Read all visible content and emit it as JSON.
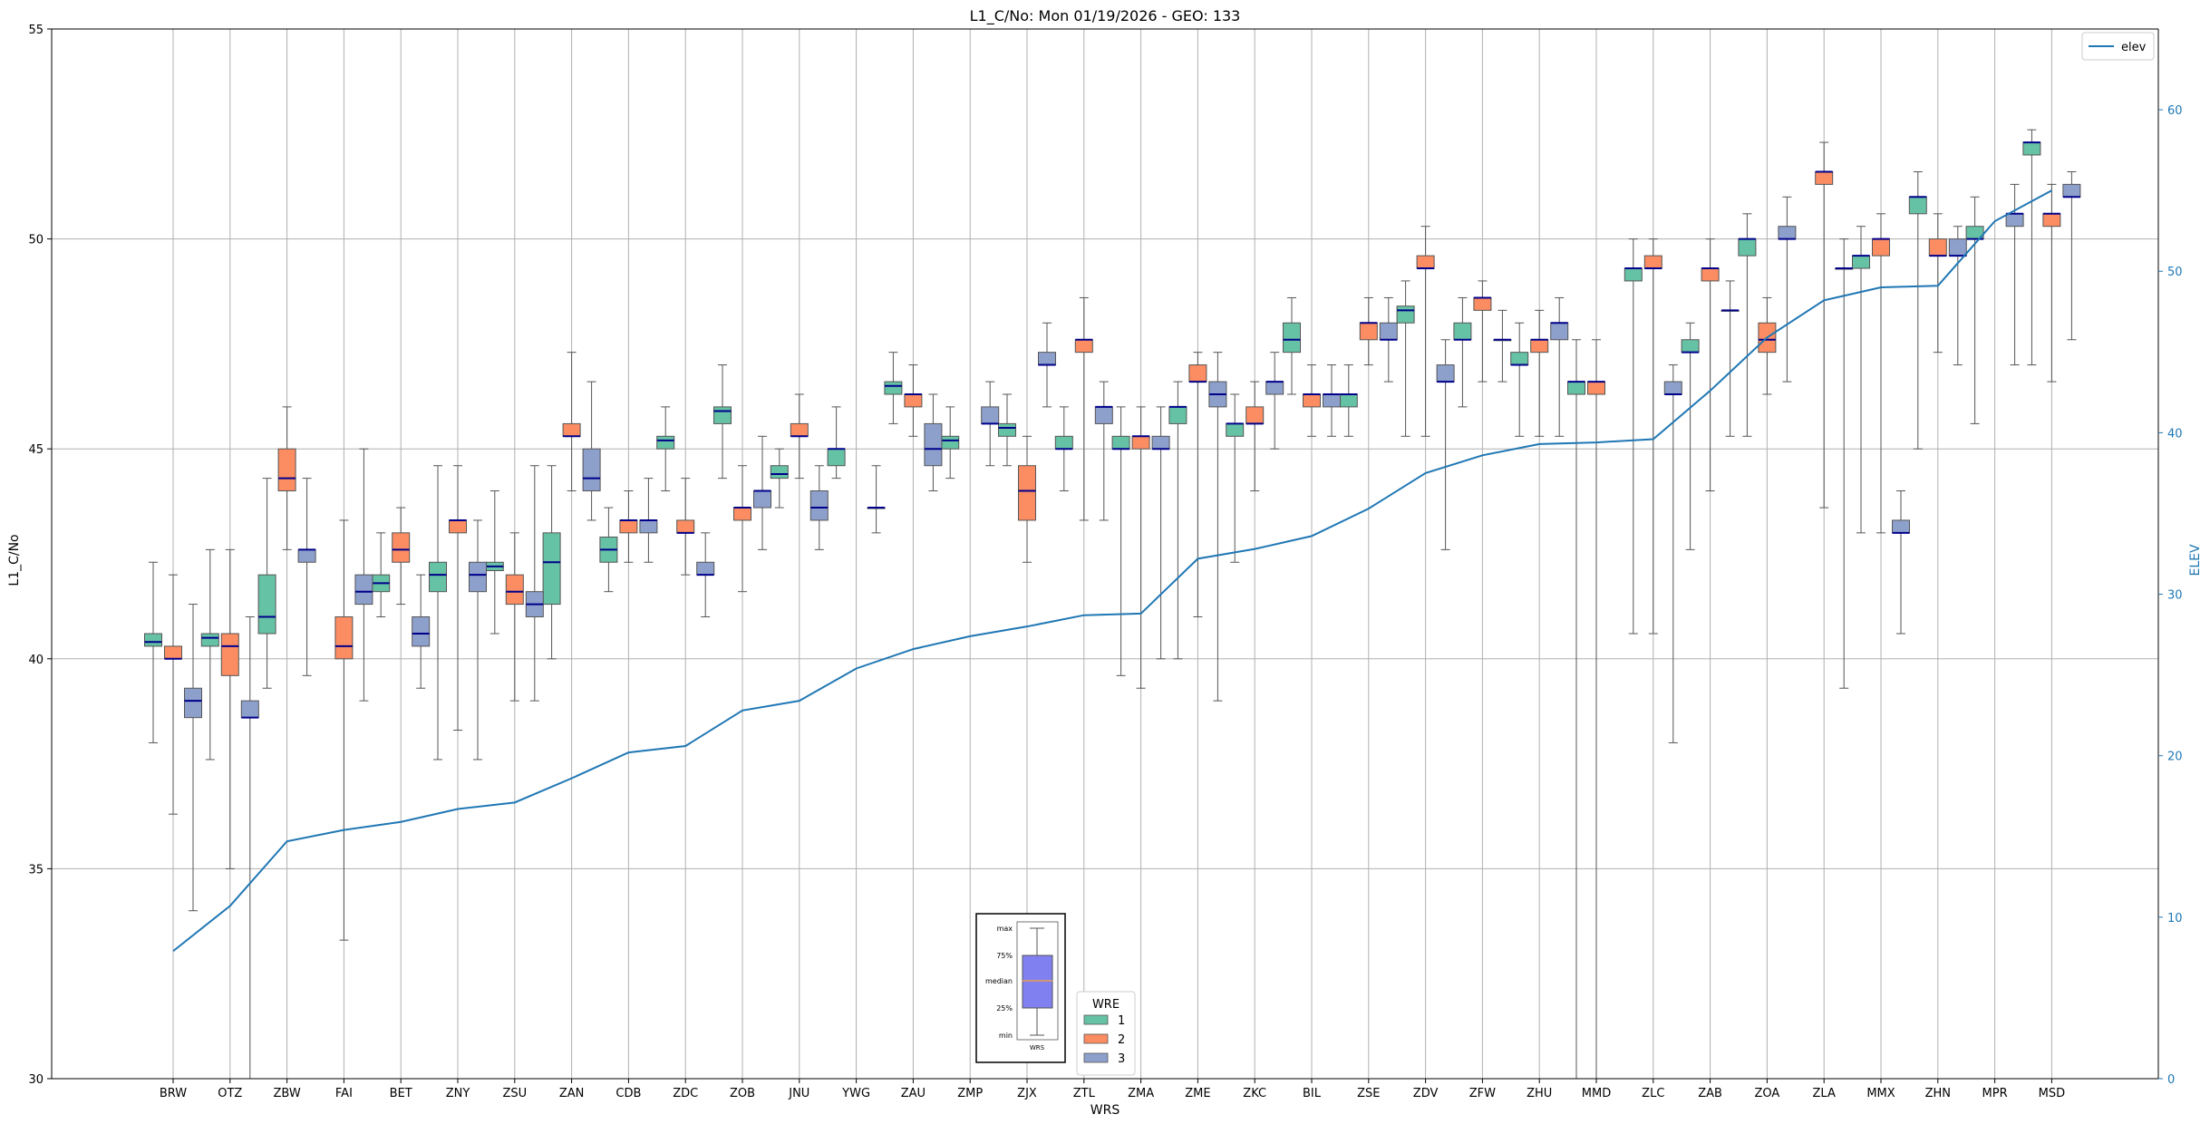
{
  "chart_data": {
    "type": "boxplot",
    "title": "L1_C/No: Mon 01/19/2026 - GEO: 133",
    "xlabel": "WRS",
    "ylabel": "L1_C/No",
    "y2label": "ELEV",
    "ylim": [
      30,
      55
    ],
    "y2lim": [
      0,
      65
    ],
    "yticks": [
      30,
      35,
      40,
      45,
      50,
      55
    ],
    "y2ticks": [
      0,
      10,
      20,
      30,
      40,
      50,
      60
    ],
    "grid": true,
    "categories": [
      "BRW",
      "OTZ",
      "ZBW",
      "FAI",
      "BET",
      "ZNY",
      "ZSU",
      "ZAN",
      "CDB",
      "ZDC",
      "ZOB",
      "JNU",
      "YWG",
      "ZAU",
      "ZMP",
      "ZJX",
      "ZTL",
      "ZMA",
      "ZME",
      "ZKC",
      "BIL",
      "ZSE",
      "ZDV",
      "ZFW",
      "ZHU",
      "MMD",
      "ZLC",
      "ZAB",
      "ZOA",
      "ZLA",
      "MMX",
      "ZHN",
      "MPR",
      "MSD"
    ],
    "wre_legend": {
      "title": "WRE",
      "entries": [
        "1",
        "2",
        "3"
      ],
      "colors": [
        "#66c2a5",
        "#fc8d62",
        "#8da0cb"
      ]
    },
    "elev_legend": {
      "label": "elev",
      "color": "#1f77b4"
    },
    "inset_labels": [
      "max",
      "75%",
      "median",
      "25%",
      "min"
    ],
    "inset_xlabel": "WRS",
    "elev": [
      7.9,
      10.7,
      14.7,
      15.4,
      15.9,
      16.7,
      17.1,
      18.6,
      20.2,
      20.6,
      22.8,
      23.4,
      25.4,
      26.6,
      27.4,
      28.0,
      28.7,
      28.8,
      32.2,
      32.8,
      33.6,
      35.3,
      37.5,
      38.6,
      39.3,
      39.4,
      39.6,
      42.6,
      45.9,
      48.2,
      49.0,
      49.1,
      53.1,
      55.0
    ],
    "series": [
      {
        "name": "1",
        "boxes": [
          [
            38.0,
            40.3,
            40.4,
            40.6,
            42.3
          ],
          [
            37.6,
            40.3,
            40.5,
            40.6,
            42.6
          ],
          [
            39.3,
            40.6,
            41.0,
            42.0,
            44.3
          ],
          null,
          [
            41.0,
            41.6,
            41.8,
            42.0,
            43.0
          ],
          [
            37.6,
            41.6,
            42.0,
            42.3,
            44.6
          ],
          [
            40.6,
            42.1,
            42.2,
            42.3,
            44.0
          ],
          [
            40.0,
            41.3,
            42.3,
            43.0,
            44.6
          ],
          [
            41.6,
            42.3,
            42.6,
            42.9,
            43.6
          ],
          [
            44.0,
            45.0,
            45.2,
            45.3,
            46.0
          ],
          [
            44.3,
            45.6,
            45.9,
            46.0,
            47.0
          ],
          [
            43.6,
            44.3,
            44.4,
            44.6,
            45.0
          ],
          [
            44.3,
            44.6,
            45.0,
            45.0,
            46.0
          ],
          [
            45.6,
            46.3,
            46.5,
            46.6,
            47.3
          ],
          [
            44.3,
            45.0,
            45.2,
            45.3,
            46.0
          ],
          [
            44.6,
            45.3,
            45.5,
            45.6,
            46.3
          ],
          [
            44.0,
            45.0,
            45.0,
            45.3,
            46.0
          ],
          [
            39.6,
            45.0,
            45.0,
            45.3,
            46.0
          ],
          [
            40.0,
            45.6,
            46.0,
            46.0,
            46.6
          ],
          [
            42.3,
            45.3,
            45.6,
            45.6,
            46.3
          ],
          [
            46.3,
            47.3,
            47.6,
            48.0,
            48.6
          ],
          [
            45.3,
            46.0,
            46.3,
            46.3,
            47.0
          ],
          [
            45.3,
            48.0,
            48.3,
            48.4,
            49.0
          ],
          [
            46.0,
            47.6,
            47.6,
            48.0,
            48.6
          ],
          [
            45.3,
            47.0,
            47.0,
            47.3,
            48.0
          ],
          [
            30.0,
            46.3,
            46.6,
            46.6,
            47.6
          ],
          [
            40.6,
            49.0,
            49.3,
            49.3,
            50.0
          ],
          [
            42.6,
            47.3,
            47.3,
            47.6,
            48.0
          ],
          [
            45.3,
            49.6,
            50.0,
            50.0,
            50.6
          ],
          null,
          [
            43.0,
            49.3,
            49.6,
            49.6,
            50.3
          ],
          [
            45.0,
            50.6,
            51.0,
            51.0,
            51.6
          ],
          [
            45.6,
            50.0,
            50.0,
            50.3,
            51.0
          ],
          [
            47.0,
            52.0,
            52.3,
            52.3,
            52.6
          ]
        ]
      },
      {
        "name": "2",
        "boxes": [
          [
            36.3,
            40.0,
            40.0,
            40.3,
            42.0
          ],
          [
            35.0,
            39.6,
            40.3,
            40.6,
            42.6
          ],
          [
            42.6,
            44.0,
            44.3,
            45.0,
            46.0
          ],
          [
            33.3,
            40.0,
            40.3,
            41.0,
            43.3
          ],
          [
            41.3,
            42.3,
            42.6,
            43.0,
            43.6
          ],
          [
            38.3,
            43.0,
            43.3,
            43.3,
            44.6
          ],
          [
            39.0,
            41.3,
            41.6,
            42.0,
            43.0
          ],
          [
            44.0,
            45.3,
            45.3,
            45.6,
            47.3
          ],
          [
            42.3,
            43.0,
            43.3,
            43.3,
            44.0
          ],
          [
            42.0,
            43.0,
            43.0,
            43.3,
            44.3
          ],
          [
            41.6,
            43.3,
            43.6,
            43.6,
            44.6
          ],
          [
            44.3,
            45.3,
            45.3,
            45.6,
            46.3
          ],
          null,
          [
            45.3,
            46.0,
            46.3,
            46.3,
            47.0
          ],
          null,
          [
            42.3,
            43.3,
            44.0,
            44.6,
            45.3
          ],
          [
            43.3,
            47.3,
            47.6,
            47.6,
            48.6
          ],
          [
            39.3,
            45.0,
            45.3,
            45.3,
            46.0
          ],
          [
            41.0,
            46.6,
            46.6,
            47.0,
            47.3
          ],
          [
            44.0,
            45.6,
            45.6,
            46.0,
            46.6
          ],
          [
            45.3,
            46.0,
            46.3,
            46.3,
            47.0
          ],
          [
            47.0,
            47.6,
            48.0,
            48.0,
            48.6
          ],
          [
            45.3,
            49.3,
            49.3,
            49.6,
            50.3
          ],
          [
            46.6,
            48.3,
            48.6,
            48.6,
            49.0
          ],
          [
            45.3,
            47.3,
            47.6,
            47.6,
            48.3
          ],
          [
            30.0,
            46.3,
            46.6,
            46.6,
            47.6
          ],
          [
            40.6,
            49.3,
            49.3,
            49.6,
            50.0
          ],
          [
            44.0,
            49.0,
            49.3,
            49.3,
            50.0
          ],
          [
            46.3,
            47.3,
            47.6,
            48.0,
            48.6
          ],
          [
            43.6,
            51.3,
            51.6,
            51.6,
            52.3
          ],
          [
            43.0,
            49.6,
            50.0,
            50.0,
            50.6
          ],
          [
            47.3,
            49.6,
            49.6,
            50.0,
            50.6
          ],
          null,
          [
            46.6,
            50.3,
            50.6,
            50.6,
            51.3
          ]
        ]
      },
      {
        "name": "3",
        "boxes": [
          [
            34.0,
            38.6,
            39.0,
            39.3,
            41.3
          ],
          [
            30.0,
            38.6,
            38.6,
            39.0,
            41.0
          ],
          [
            39.6,
            42.3,
            42.6,
            42.6,
            44.3
          ],
          [
            39.0,
            41.3,
            41.6,
            42.0,
            45.0
          ],
          [
            39.3,
            40.3,
            40.6,
            41.0,
            42.0
          ],
          [
            37.6,
            41.6,
            42.0,
            42.3,
            43.3
          ],
          [
            39.0,
            41.0,
            41.3,
            41.6,
            44.6
          ],
          [
            43.3,
            44.0,
            44.3,
            45.0,
            46.6
          ],
          [
            42.3,
            43.0,
            43.3,
            43.3,
            44.3
          ],
          [
            41.0,
            42.0,
            42.0,
            42.3,
            43.0
          ],
          [
            42.6,
            43.6,
            44.0,
            44.0,
            45.3
          ],
          [
            42.6,
            43.3,
            43.6,
            44.0,
            44.6
          ],
          [
            43.0,
            43.6,
            43.6,
            43.6,
            44.6
          ],
          [
            44.0,
            44.6,
            45.0,
            45.6,
            46.3
          ],
          [
            44.6,
            45.6,
            45.6,
            46.0,
            46.6
          ],
          [
            46.0,
            47.0,
            47.0,
            47.3,
            48.0
          ],
          [
            43.3,
            45.6,
            46.0,
            46.0,
            46.6
          ],
          [
            40.0,
            45.0,
            45.0,
            45.3,
            46.0
          ],
          [
            39.0,
            46.0,
            46.3,
            46.6,
            47.3
          ],
          [
            45.0,
            46.3,
            46.6,
            46.6,
            47.3
          ],
          [
            45.3,
            46.0,
            46.3,
            46.3,
            47.0
          ],
          [
            46.6,
            47.6,
            47.6,
            48.0,
            48.6
          ],
          [
            42.6,
            46.6,
            46.6,
            47.0,
            47.6
          ],
          [
            46.6,
            47.6,
            47.6,
            47.6,
            48.3
          ],
          [
            45.3,
            47.6,
            48.0,
            48.0,
            48.6
          ],
          null,
          [
            38.0,
            46.3,
            46.3,
            46.6,
            47.0
          ],
          [
            45.3,
            48.3,
            48.3,
            48.3,
            49.0
          ],
          [
            46.6,
            50.0,
            50.0,
            50.3,
            51.0
          ],
          [
            39.3,
            49.3,
            49.3,
            49.3,
            50.0
          ],
          [
            40.6,
            43.0,
            43.0,
            43.3,
            44.0
          ],
          [
            47.0,
            49.6,
            49.6,
            50.0,
            50.3
          ],
          [
            47.0,
            50.3,
            50.6,
            50.6,
            51.3
          ],
          [
            47.6,
            51.0,
            51.0,
            51.3,
            51.6
          ]
        ]
      }
    ]
  }
}
